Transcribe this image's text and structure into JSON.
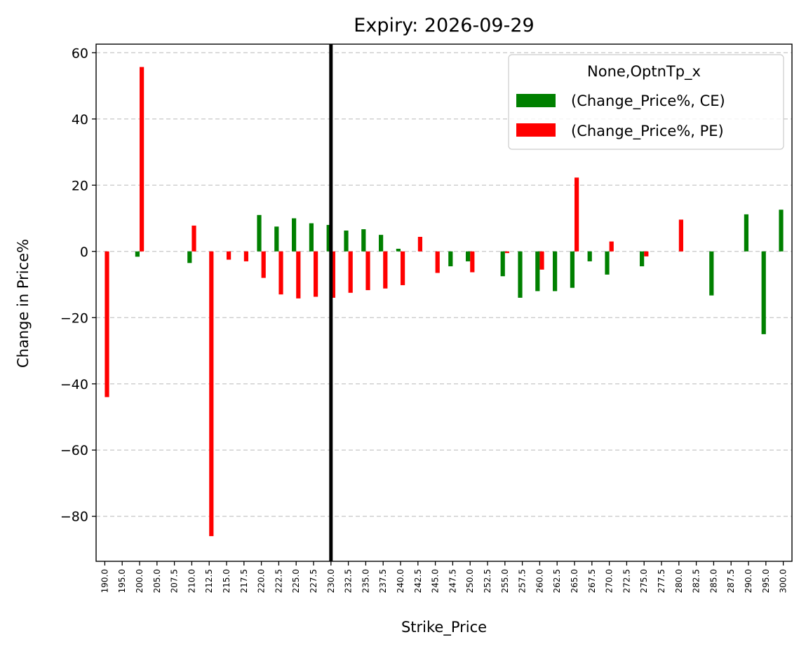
{
  "chart_data": {
    "type": "bar",
    "title": "Expiry: 2026-09-29",
    "xlabel": "Strike_Price",
    "ylabel": "Change in Price%",
    "ylim": [
      -93.6,
      62.6
    ],
    "yticks": [
      60,
      40,
      20,
      0,
      -20,
      -40,
      -60,
      -80
    ],
    "ytick_labels": [
      "60",
      "40",
      "20",
      "0",
      "−20",
      "−40",
      "−60",
      "−80"
    ],
    "grid": "y-dashed",
    "legend_position": "top-right",
    "legend_title": "None,OptnTp_x",
    "categories": [
      "190.0",
      "195.0",
      "200.0",
      "205.0",
      "207.5",
      "210.0",
      "212.5",
      "215.0",
      "217.5",
      "220.0",
      "222.5",
      "225.0",
      "227.5",
      "230.0",
      "232.5",
      "235.0",
      "237.5",
      "240.0",
      "242.5",
      "245.0",
      "247.5",
      "250.0",
      "252.5",
      "255.0",
      "257.5",
      "260.0",
      "262.5",
      "265.0",
      "267.5",
      "270.0",
      "272.5",
      "275.0",
      "277.5",
      "280.0",
      "282.5",
      "285.0",
      "287.5",
      "290.0",
      "295.0",
      "300.0"
    ],
    "series": [
      {
        "name": "(Change_Price%, CE)",
        "color": "#008000",
        "values": [
          null,
          null,
          -1.6,
          null,
          null,
          -3.5,
          null,
          null,
          null,
          11,
          7.5,
          10,
          8.5,
          8,
          6.3,
          6.7,
          5,
          0.8,
          null,
          null,
          -4.5,
          -3,
          null,
          -7.5,
          -14,
          -12,
          -12,
          -11,
          -3,
          -7,
          null,
          -4.5,
          null,
          null,
          null,
          -13.3,
          null,
          11.2,
          -25,
          12.6
        ]
      },
      {
        "name": "(Change_Price%, PE)",
        "color": "#ff0000",
        "values": [
          -44,
          null,
          55.7,
          null,
          null,
          7.8,
          -86,
          -2.5,
          -3,
          -8,
          -13,
          -14.2,
          -13.7,
          -14,
          -12.5,
          -11.7,
          -11.2,
          -10.2,
          4.4,
          -6.5,
          null,
          -6.3,
          null,
          -0.5,
          null,
          -5.5,
          null,
          22.3,
          null,
          3,
          null,
          -1.5,
          null,
          9.6,
          null,
          null,
          null,
          null,
          null,
          null
        ]
      }
    ],
    "vline": {
      "x": "230.0",
      "color": "#000000"
    }
  }
}
